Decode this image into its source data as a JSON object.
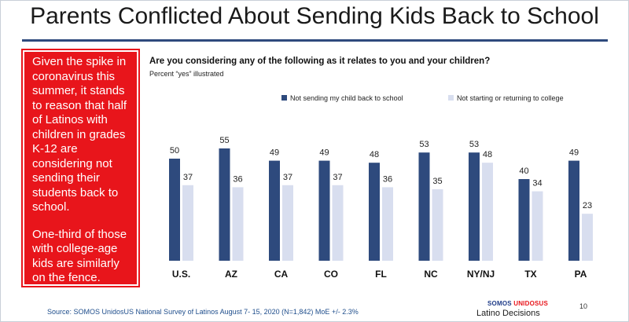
{
  "title": "Parents Conflicted About Sending Kids Back to School",
  "sidebar": {
    "para1": "Given the spike in coronavirus this summer, it stands to reason that half of Latinos with children in grades K-12 are considering not sending their students back to school.",
    "para2": "One-third of those with college-age kids are similarly on the fence."
  },
  "question": "Are you considering any of the following as it relates to you and your children?",
  "subtitle": "Percent “yes” illustrated",
  "footer": "Source: SOMOS UnidosUS National Survey of Latinos August 7- 15, 2020 (N=1,842) MoE +/- 2.3%",
  "page_number": "10",
  "logo": {
    "somos": "SOMOS",
    "unidos": "UNIDOSUS",
    "latino_decisions": "Latino Decisions"
  },
  "colors": {
    "accent": "#2e4a7d",
    "series1": "#2e4a7d",
    "series2": "#d8deef",
    "sidebar": "#e8151b"
  },
  "chart_data": {
    "type": "bar",
    "title": "Are you considering any of the following as it relates to you and your children?",
    "subtitle": "Percent “yes” illustrated",
    "categories": [
      "U.S.",
      "AZ",
      "CA",
      "CO",
      "FL",
      "NC",
      "NY/NJ",
      "TX",
      "PA"
    ],
    "series": [
      {
        "name": "Not sending my child back to school",
        "values": [
          50,
          55,
          49,
          49,
          48,
          53,
          53,
          40,
          49
        ]
      },
      {
        "name": "Not starting or returning to college",
        "values": [
          37,
          36,
          37,
          37,
          36,
          35,
          48,
          34,
          23
        ]
      }
    ],
    "ylim": [
      0,
      60
    ],
    "grid": false,
    "legend": "top-right",
    "data_labels": true
  }
}
